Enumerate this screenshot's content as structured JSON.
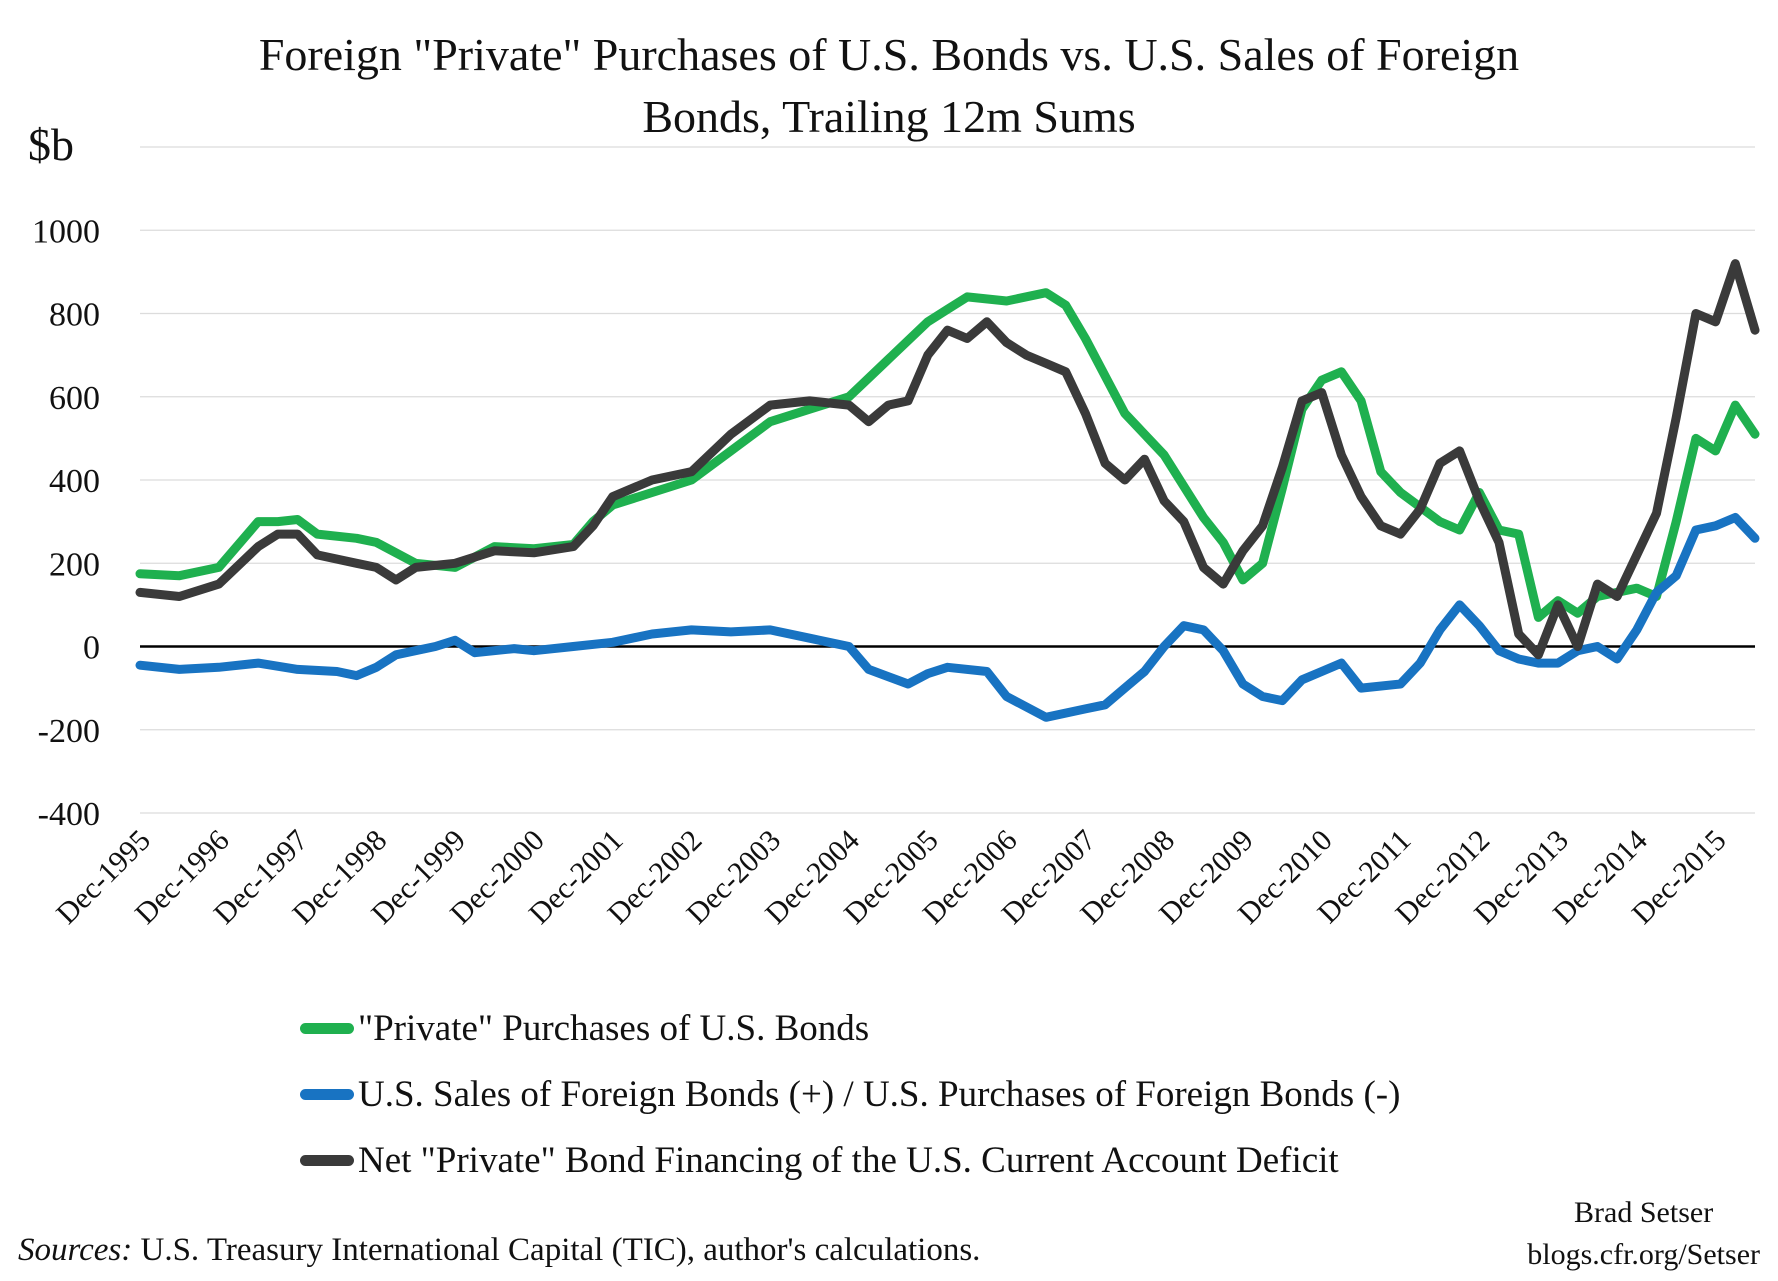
{
  "chart_data": {
    "type": "line",
    "title": "Foreign \"Private\" Purchases of U.S. Bonds vs. U.S. Sales of Foreign Bonds, Trailing 12m Sums",
    "title_lines": [
      "Foreign \"Private\" Purchases of U.S. Bonds vs. U.S. Sales of Foreign",
      "Bonds, Trailing 12m Sums"
    ],
    "ylabel": "$b",
    "xlabel": "",
    "ylim": [
      -400,
      1200
    ],
    "yticks": [
      -400,
      -200,
      0,
      200,
      400,
      600,
      800,
      1000
    ],
    "xlim": [
      "Dec-1995",
      "Jun-2016"
    ],
    "x_tick_labels": [
      "Dec-1995",
      "Dec-1996",
      "Dec-1997",
      "Dec-1998",
      "Dec-1999",
      "Dec-2000",
      "Dec-2001",
      "Dec-2002",
      "Dec-2003",
      "Dec-2004",
      "Dec-2005",
      "Dec-2006",
      "Dec-2007",
      "Dec-2008",
      "Dec-2009",
      "Dec-2010",
      "Dec-2011",
      "Dec-2012",
      "Dec-2013",
      "Dec-2014",
      "Dec-2015"
    ],
    "grid": "horizontal",
    "legend_position": "bottom",
    "series": [
      {
        "name": "\"Private\" Purchases of U.S. Bonds",
        "color": "#1fb04f",
        "points": [
          [
            "Dec-1995",
            175
          ],
          [
            "Jun-1996",
            170
          ],
          [
            "Dec-1996",
            190
          ],
          [
            "Jun-1997",
            300
          ],
          [
            "Sep-1997",
            300
          ],
          [
            "Dec-1997",
            305
          ],
          [
            "Mar-1998",
            270
          ],
          [
            "Sep-1998",
            260
          ],
          [
            "Dec-1998",
            250
          ],
          [
            "Jun-1999",
            200
          ],
          [
            "Dec-1999",
            190
          ],
          [
            "Jun-2000",
            240
          ],
          [
            "Dec-2000",
            235
          ],
          [
            "Jun-2001",
            245
          ],
          [
            "Sep-2001",
            300
          ],
          [
            "Dec-2001",
            340
          ],
          [
            "Jun-2002",
            370
          ],
          [
            "Dec-2002",
            400
          ],
          [
            "Jun-2003",
            470
          ],
          [
            "Dec-2003",
            540
          ],
          [
            "Jun-2004",
            570
          ],
          [
            "Dec-2004",
            600
          ],
          [
            "Jun-2005",
            690
          ],
          [
            "Dec-2005",
            780
          ],
          [
            "Mar-2006",
            810
          ],
          [
            "Jun-2006",
            840
          ],
          [
            "Dec-2006",
            830
          ],
          [
            "Jun-2007",
            850
          ],
          [
            "Sep-2007",
            820
          ],
          [
            "Dec-2007",
            740
          ],
          [
            "Jun-2008",
            560
          ],
          [
            "Dec-2008",
            460
          ],
          [
            "Jun-2009",
            310
          ],
          [
            "Sep-2009",
            250
          ],
          [
            "Dec-2009",
            160
          ],
          [
            "Mar-2010",
            200
          ],
          [
            "Jun-2010",
            380
          ],
          [
            "Sep-2010",
            570
          ],
          [
            "Dec-2010",
            640
          ],
          [
            "Mar-2011",
            660
          ],
          [
            "Jun-2011",
            590
          ],
          [
            "Sep-2011",
            420
          ],
          [
            "Dec-2011",
            370
          ],
          [
            "Jun-2012",
            300
          ],
          [
            "Sep-2012",
            280
          ],
          [
            "Dec-2012",
            370
          ],
          [
            "Mar-2013",
            280
          ],
          [
            "Jun-2013",
            270
          ],
          [
            "Sep-2013",
            70
          ],
          [
            "Dec-2013",
            110
          ],
          [
            "Mar-2014",
            80
          ],
          [
            "Jun-2014",
            120
          ],
          [
            "Dec-2014",
            140
          ],
          [
            "Mar-2015",
            120
          ],
          [
            "Jun-2015",
            300
          ],
          [
            "Sep-2015",
            500
          ],
          [
            "Dec-2015",
            470
          ],
          [
            "Mar-2016",
            580
          ],
          [
            "Jun-2016",
            510
          ]
        ]
      },
      {
        "name": "U.S. Sales of Foreign Bonds (+) / U.S. Purchases of Foreign Bonds (-)",
        "color": "#1873c2",
        "points": [
          [
            "Dec-1995",
            -45
          ],
          [
            "Jun-1996",
            -55
          ],
          [
            "Dec-1996",
            -50
          ],
          [
            "Jun-1997",
            -40
          ],
          [
            "Dec-1997",
            -55
          ],
          [
            "Jun-1998",
            -60
          ],
          [
            "Sep-1998",
            -70
          ],
          [
            "Dec-1998",
            -50
          ],
          [
            "Mar-1999",
            -20
          ],
          [
            "Sep-1999",
            0
          ],
          [
            "Dec-1999",
            15
          ],
          [
            "Mar-2000",
            -15
          ],
          [
            "Sep-2000",
            -5
          ],
          [
            "Dec-2000",
            -10
          ],
          [
            "Jun-2001",
            0
          ],
          [
            "Dec-2001",
            10
          ],
          [
            "Jun-2002",
            30
          ],
          [
            "Dec-2002",
            40
          ],
          [
            "Jun-2003",
            35
          ],
          [
            "Dec-2003",
            40
          ],
          [
            "Jun-2004",
            20
          ],
          [
            "Dec-2004",
            0
          ],
          [
            "Mar-2005",
            -55
          ],
          [
            "Sep-2005",
            -90
          ],
          [
            "Dec-2005",
            -65
          ],
          [
            "Mar-2006",
            -50
          ],
          [
            "Sep-2006",
            -60
          ],
          [
            "Dec-2006",
            -120
          ],
          [
            "Jun-2007",
            -170
          ],
          [
            "Dec-2007",
            -150
          ],
          [
            "Mar-2008",
            -140
          ],
          [
            "Jun-2008",
            -100
          ],
          [
            "Sep-2008",
            -60
          ],
          [
            "Dec-2008",
            0
          ],
          [
            "Mar-2009",
            50
          ],
          [
            "Jun-2009",
            40
          ],
          [
            "Sep-2009",
            -10
          ],
          [
            "Dec-2009",
            -90
          ],
          [
            "Mar-2010",
            -120
          ],
          [
            "Jun-2010",
            -130
          ],
          [
            "Sep-2010",
            -80
          ],
          [
            "Dec-2010",
            -60
          ],
          [
            "Mar-2011",
            -40
          ],
          [
            "Jun-2011",
            -100
          ],
          [
            "Dec-2011",
            -90
          ],
          [
            "Mar-2012",
            -40
          ],
          [
            "Jun-2012",
            40
          ],
          [
            "Sep-2012",
            100
          ],
          [
            "Dec-2012",
            50
          ],
          [
            "Mar-2013",
            -10
          ],
          [
            "Jun-2013",
            -30
          ],
          [
            "Sep-2013",
            -40
          ],
          [
            "Dec-2013",
            -40
          ],
          [
            "Mar-2014",
            -10
          ],
          [
            "Jun-2014",
            0
          ],
          [
            "Sep-2014",
            -30
          ],
          [
            "Dec-2014",
            40
          ],
          [
            "Mar-2015",
            130
          ],
          [
            "Jun-2015",
            170
          ],
          [
            "Sep-2015",
            280
          ],
          [
            "Dec-2015",
            290
          ],
          [
            "Mar-2016",
            310
          ],
          [
            "Jun-2016",
            260
          ]
        ]
      },
      {
        "name": "Net \"Private\" Bond Financing of the U.S. Current Account Deficit",
        "color": "#3a3a3a",
        "points": [
          [
            "Dec-1995",
            130
          ],
          [
            "Jun-1996",
            120
          ],
          [
            "Dec-1996",
            150
          ],
          [
            "Jun-1997",
            240
          ],
          [
            "Sep-1997",
            270
          ],
          [
            "Dec-1997",
            270
          ],
          [
            "Mar-1998",
            220
          ],
          [
            "Sep-1998",
            200
          ],
          [
            "Dec-1998",
            190
          ],
          [
            "Mar-1999",
            160
          ],
          [
            "Jun-1999",
            190
          ],
          [
            "Dec-1999",
            200
          ],
          [
            "Jun-2000",
            230
          ],
          [
            "Dec-2000",
            225
          ],
          [
            "Jun-2001",
            240
          ],
          [
            "Sep-2001",
            290
          ],
          [
            "Dec-2001",
            360
          ],
          [
            "Jun-2002",
            400
          ],
          [
            "Dec-2002",
            420
          ],
          [
            "Jun-2003",
            510
          ],
          [
            "Dec-2003",
            580
          ],
          [
            "Jun-2004",
            590
          ],
          [
            "Dec-2004",
            580
          ],
          [
            "Mar-2005",
            540
          ],
          [
            "Jun-2005",
            580
          ],
          [
            "Sep-2005",
            590
          ],
          [
            "Dec-2005",
            700
          ],
          [
            "Mar-2006",
            760
          ],
          [
            "Jun-2006",
            740
          ],
          [
            "Sep-2006",
            780
          ],
          [
            "Dec-2006",
            730
          ],
          [
            "Mar-2007",
            700
          ],
          [
            "Jun-2007",
            680
          ],
          [
            "Sep-2007",
            660
          ],
          [
            "Dec-2007",
            560
          ],
          [
            "Mar-2008",
            440
          ],
          [
            "Jun-2008",
            400
          ],
          [
            "Sep-2008",
            450
          ],
          [
            "Dec-2008",
            350
          ],
          [
            "Mar-2009",
            300
          ],
          [
            "Jun-2009",
            190
          ],
          [
            "Sep-2009",
            150
          ],
          [
            "Dec-2009",
            230
          ],
          [
            "Mar-2010",
            290
          ],
          [
            "Jun-2010",
            430
          ],
          [
            "Sep-2010",
            590
          ],
          [
            "Dec-2010",
            610
          ],
          [
            "Mar-2011",
            460
          ],
          [
            "Jun-2011",
            360
          ],
          [
            "Sep-2011",
            290
          ],
          [
            "Dec-2011",
            270
          ],
          [
            "Mar-2012",
            330
          ],
          [
            "Jun-2012",
            440
          ],
          [
            "Sep-2012",
            470
          ],
          [
            "Dec-2012",
            350
          ],
          [
            "Mar-2013",
            250
          ],
          [
            "Jun-2013",
            30
          ],
          [
            "Sep-2013",
            -20
          ],
          [
            "Dec-2013",
            100
          ],
          [
            "Mar-2014",
            0
          ],
          [
            "Jun-2014",
            150
          ],
          [
            "Sep-2014",
            120
          ],
          [
            "Dec-2014",
            220
          ],
          [
            "Mar-2015",
            320
          ],
          [
            "Jun-2015",
            550
          ],
          [
            "Sep-2015",
            800
          ],
          [
            "Dec-2015",
            780
          ],
          [
            "Mar-2016",
            920
          ],
          [
            "Jun-2016",
            760
          ]
        ]
      }
    ]
  },
  "source_label": "Sources:",
  "source_text": " U.S. Treasury International Capital (TIC), author's calculations.",
  "credit": {
    "name": "Brad Setser",
    "site": "blogs.cfr.org/Setser"
  }
}
